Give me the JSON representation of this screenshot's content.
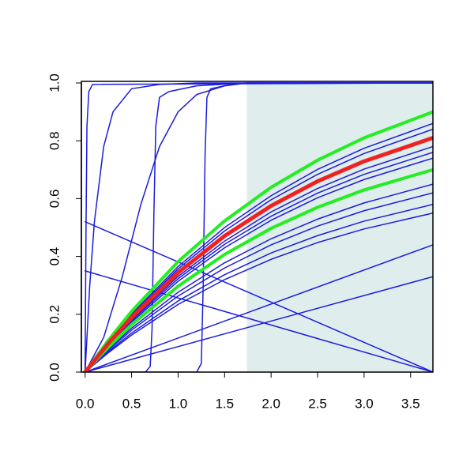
{
  "chart_data": {
    "type": "line",
    "xlim": [
      -0.04,
      3.74
    ],
    "ylim": [
      0,
      1
    ],
    "xticks": [
      {
        "value": 0,
        "label": "0.0"
      },
      0.5,
      {
        "value": 1,
        "label": "1.0"
      },
      1.5,
      {
        "value": 2,
        "label": "2.0"
      },
      2.5,
      {
        "value": 3,
        "label": "3.0"
      },
      3.5
    ],
    "yticks": [
      {
        "value": 0,
        "label": "0.0"
      },
      0.2,
      0.4,
      0.6,
      0.8,
      {
        "value": 1,
        "label": "1.0"
      }
    ],
    "highlight": {
      "from": 1.74,
      "to": 3.74,
      "color": "#e0eded"
    },
    "series": [
      {
        "color": "#1c1cdc",
        "linewidth": 1.5,
        "x": [
          0,
          0.01,
          0.02,
          0.04,
          0.08,
          3.74
        ],
        "values": [
          0,
          0.5,
          0.85,
          0.97,
          0.995,
          1
        ]
      },
      {
        "color": "#1c1cdc",
        "linewidth": 1.5,
        "x": [
          0,
          0.05,
          0.1,
          0.2,
          0.3,
          0.5,
          0.8,
          1.2,
          3.74
        ],
        "values": [
          0,
          0.3,
          0.52,
          0.78,
          0.9,
          0.98,
          0.995,
          1,
          1
        ]
      },
      {
        "color": "#1c1cdc",
        "linewidth": 1.5,
        "x": [
          0,
          0.2,
          0.4,
          0.6,
          0.8,
          1.0,
          1.2,
          1.5,
          1.74,
          3.74
        ],
        "values": [
          0,
          0.12,
          0.33,
          0.58,
          0.78,
          0.9,
          0.96,
          0.99,
          1,
          1
        ]
      },
      {
        "color": "#1c1cdc",
        "linewidth": 1.5,
        "x": [
          0,
          0.65,
          0.7,
          0.72,
          0.74,
          0.76,
          0.8,
          0.9,
          1.2,
          1.74,
          3.74
        ],
        "values": [
          0,
          0,
          0.02,
          0.15,
          0.55,
          0.85,
          0.95,
          0.97,
          0.99,
          1,
          1
        ]
      },
      {
        "color": "#1c1cdc",
        "linewidth": 1.5,
        "x": [
          0,
          1.2,
          1.25,
          1.27,
          1.29,
          1.31,
          1.35,
          1.5,
          1.74,
          3.74
        ],
        "values": [
          0,
          0,
          0.03,
          0.3,
          0.75,
          0.95,
          0.98,
          0.99,
          1,
          1
        ]
      },
      {
        "color": "#1c1cdc",
        "linewidth": 1.5,
        "x": [
          0,
          3.74
        ],
        "values": [
          0.52,
          0
        ]
      },
      {
        "color": "#1c1cdc",
        "linewidth": 1.5,
        "x": [
          0,
          3.74
        ],
        "values": [
          0.35,
          0
        ]
      },
      {
        "color": "#1c1cdc",
        "linewidth": 1.5,
        "x": [
          0,
          3.74
        ],
        "values": [
          0,
          0.44
        ]
      },
      {
        "color": "#1c1cdc",
        "linewidth": 1.5,
        "x": [
          0,
          3.74
        ],
        "values": [
          0,
          0.33
        ]
      },
      {
        "color": "#1c1cdc",
        "linewidth": 1.5,
        "x": [
          0,
          0.25,
          0.5,
          1,
          1.5,
          2,
          2.5,
          3,
          3.74
        ],
        "values": [
          0,
          0.106,
          0.201,
          0.365,
          0.5,
          0.61,
          0.701,
          0.774,
          0.86
        ]
      },
      {
        "color": "#1c1cdc",
        "linewidth": 1.5,
        "x": [
          0,
          0.25,
          0.5,
          1,
          1.5,
          2,
          2.5,
          3,
          3.74
        ],
        "values": [
          0,
          0.103,
          0.196,
          0.357,
          0.488,
          0.596,
          0.684,
          0.756,
          0.84
        ]
      },
      {
        "color": "#1c1cdc",
        "linewidth": 1.5,
        "x": [
          0,
          0.25,
          0.5,
          1,
          1.5,
          2,
          2.5,
          3,
          3.74
        ],
        "values": [
          0,
          0.096,
          0.182,
          0.331,
          0.453,
          0.554,
          0.635,
          0.702,
          0.78
        ]
      },
      {
        "color": "#1c1cdc",
        "linewidth": 1.5,
        "x": [
          0,
          0.25,
          0.5,
          1,
          1.5,
          2,
          2.5,
          3,
          3.74
        ],
        "values": [
          0,
          0.093,
          0.178,
          0.323,
          0.442,
          0.539,
          0.619,
          0.684,
          0.76
        ]
      },
      {
        "color": "#1c1cdc",
        "linewidth": 1.5,
        "x": [
          0,
          0.25,
          0.5,
          1,
          1.5,
          2,
          2.5,
          3,
          3.74
        ],
        "values": [
          0,
          0.091,
          0.173,
          0.314,
          0.43,
          0.525,
          0.603,
          0.666,
          0.74
        ]
      },
      {
        "color": "#1c1cdc",
        "linewidth": 1.5,
        "x": [
          0,
          0.25,
          0.5,
          1,
          1.5,
          2,
          2.5,
          3,
          3.74
        ],
        "values": [
          0,
          0.08,
          0.152,
          0.276,
          0.378,
          0.461,
          0.529,
          0.585,
          0.65
        ]
      },
      {
        "color": "#1c1cdc",
        "linewidth": 1.5,
        "x": [
          0,
          0.25,
          0.5,
          1,
          1.5,
          2,
          2.5,
          3,
          3.74
        ],
        "values": [
          0,
          0.076,
          0.145,
          0.263,
          0.36,
          0.44,
          0.505,
          0.558,
          0.62
        ]
      },
      {
        "color": "#1c1cdc",
        "linewidth": 1.5,
        "x": [
          0,
          0.25,
          0.5,
          1,
          1.5,
          2,
          2.5,
          3,
          3.74
        ],
        "values": [
          0,
          0.071,
          0.135,
          0.246,
          0.337,
          0.412,
          0.472,
          0.522,
          0.58
        ]
      },
      {
        "color": "#1c1cdc",
        "linewidth": 1.5,
        "x": [
          0,
          0.25,
          0.5,
          1,
          1.5,
          2,
          2.5,
          3,
          3.74
        ],
        "values": [
          0,
          0.067,
          0.128,
          0.234,
          0.32,
          0.39,
          0.448,
          0.495,
          0.55
        ]
      },
      {
        "color": "#22ee22",
        "linewidth": 4,
        "x": [
          0,
          0.25,
          0.5,
          1,
          1.5,
          2,
          2.5,
          3,
          3.74
        ],
        "values": [
          0,
          0.11,
          0.21,
          0.382,
          0.523,
          0.639,
          0.733,
          0.81,
          0.9
        ]
      },
      {
        "color": "#22ee22",
        "linewidth": 4,
        "x": [
          0,
          0.25,
          0.5,
          1,
          1.5,
          2,
          2.5,
          3,
          3.74
        ],
        "values": [
          0,
          0.086,
          0.164,
          0.297,
          0.407,
          0.497,
          0.57,
          0.63,
          0.7
        ]
      },
      {
        "color": "#ee2222",
        "linewidth": 5,
        "x": [
          0,
          0.25,
          0.5,
          1,
          1.5,
          2,
          2.5,
          3,
          3.74
        ],
        "values": [
          0,
          0.099,
          0.189,
          0.344,
          0.471,
          0.575,
          0.66,
          0.729,
          0.81
        ]
      }
    ]
  }
}
